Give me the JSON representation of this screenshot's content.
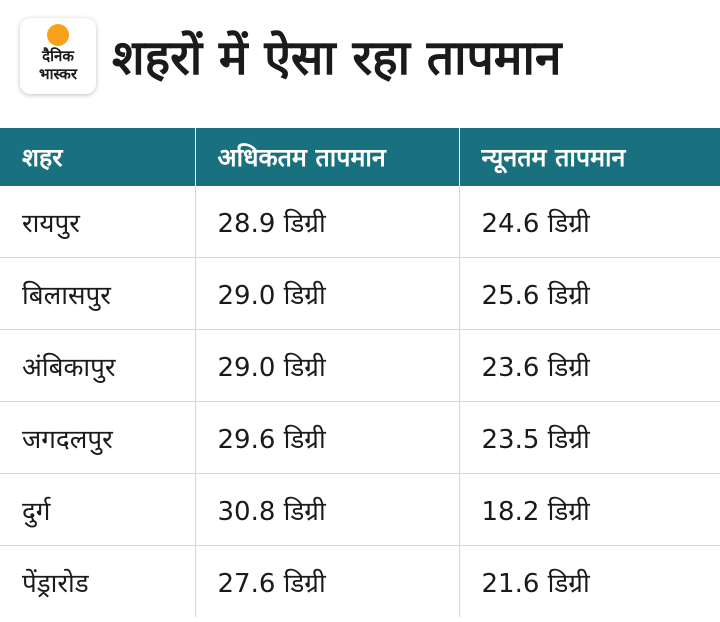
{
  "logo": {
    "line1": "दैनिक",
    "line2": "भास्कर",
    "accent_color": "#f6a21a"
  },
  "header": {
    "title": "शहरों में ऐसा रहा तापमान"
  },
  "colors": {
    "table_header_bg": "#19707e",
    "table_header_text": "#ffffff"
  },
  "chart_data": {
    "type": "table",
    "columns": [
      "शहर",
      "अधिकतम तापमान",
      "न्यूनतम तापमान"
    ],
    "rows": [
      [
        "रायपुर",
        "28.9 डिग्री",
        "24.6 डिग्री"
      ],
      [
        "बिलासपुर",
        "29.0 डिग्री",
        "25.6 डिग्री"
      ],
      [
        "अंबिकापुर",
        "29.0 डिग्री",
        "23.6 डिग्री"
      ],
      [
        "जगदलपुर",
        "29.6 डिग्री",
        "23.5 डिग्री"
      ],
      [
        "दुर्ग",
        "30.8 डिग्री",
        "18.2 डिग्री"
      ],
      [
        "पेंड्रारोड",
        "27.6 डिग्री",
        "21.6 डिग्री"
      ]
    ]
  }
}
